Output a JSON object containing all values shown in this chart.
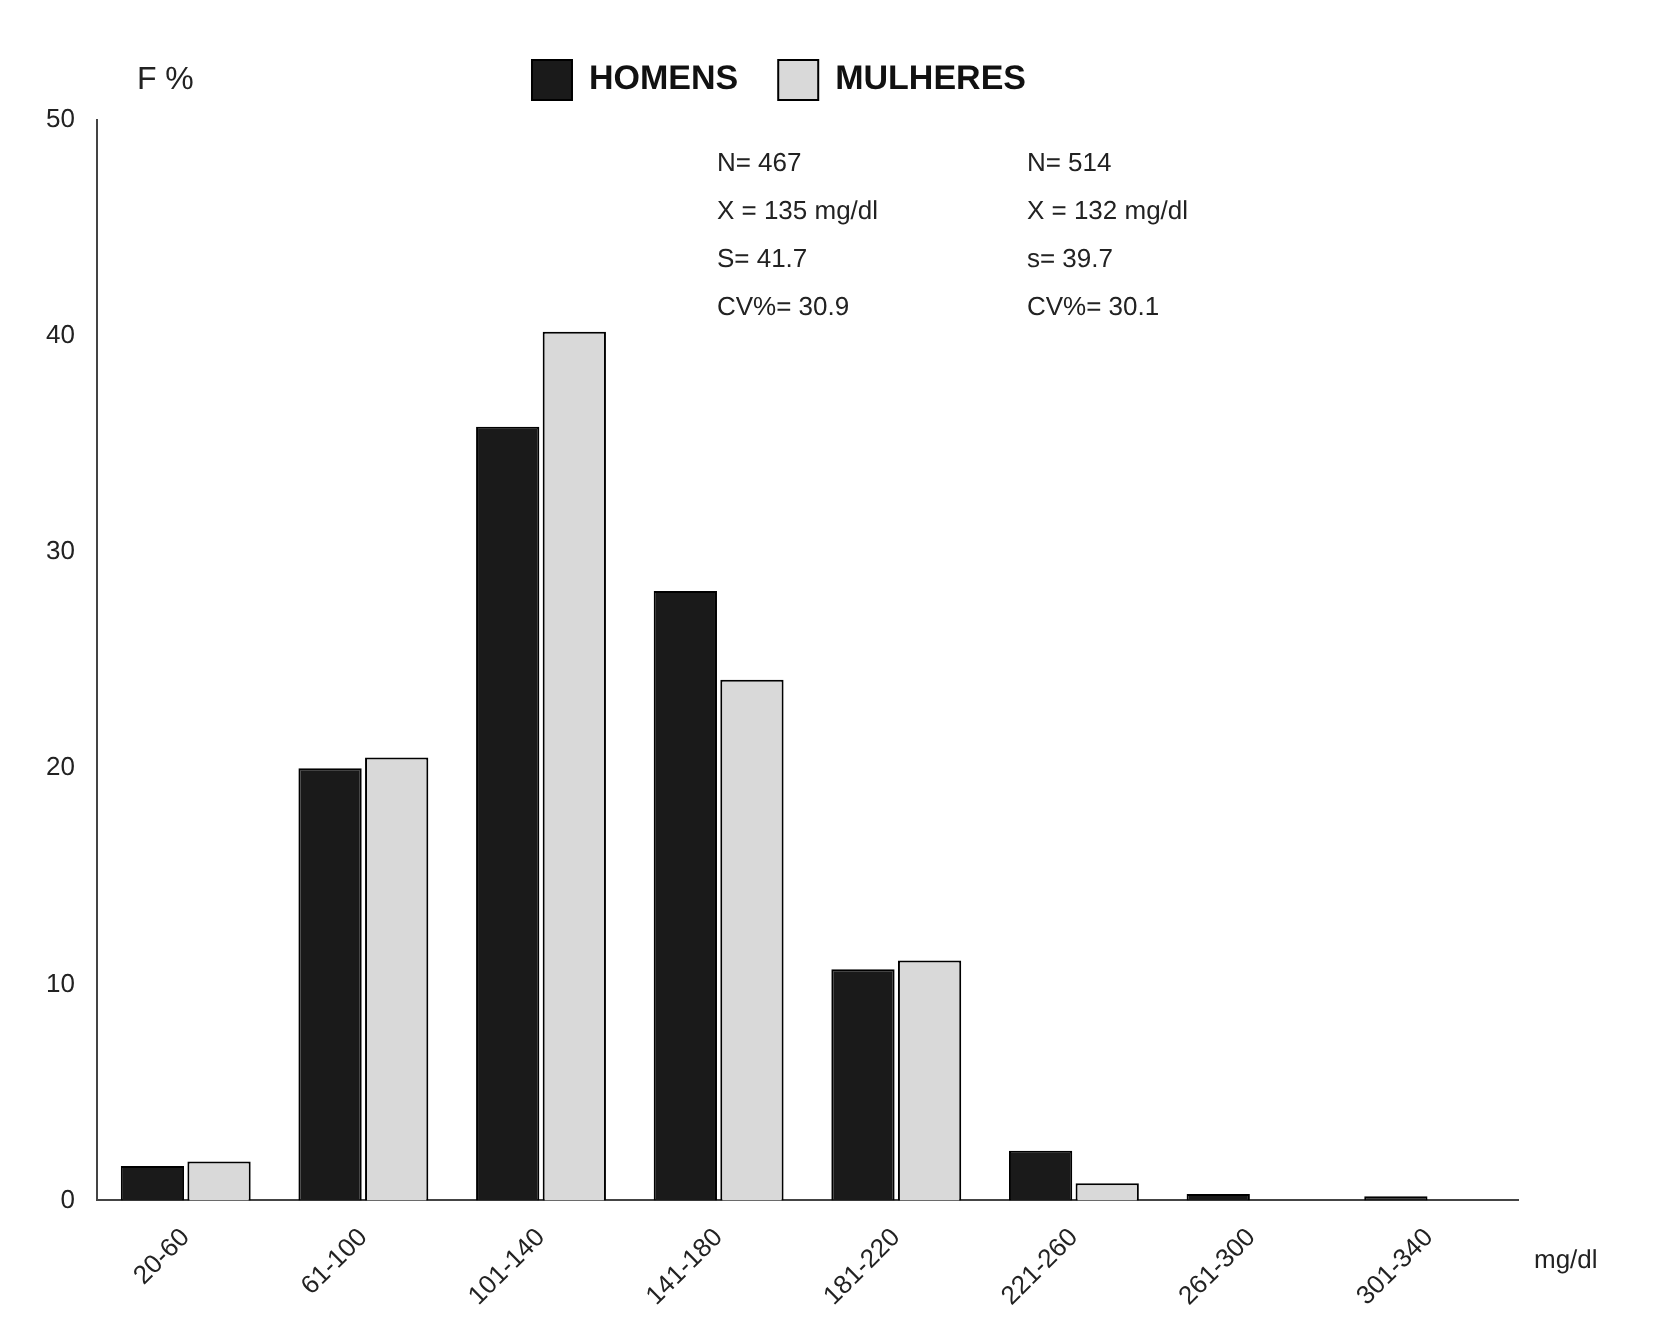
{
  "chart_data": {
    "type": "bar",
    "ylabel": "F %",
    "xlabel": "mg/dl",
    "categories": [
      "20-60",
      "61-100",
      "101-140",
      "141-180",
      "181-220",
      "221-260",
      "261-300",
      "301-340"
    ],
    "series": [
      {
        "name": "HOMENS",
        "color": "#1a1a1a",
        "values": [
          1.6,
          20,
          35.8,
          28.2,
          10.7,
          2.3,
          0.3,
          0.2
        ]
      },
      {
        "name": "MULHERES",
        "color": "#d9d9d9",
        "values": [
          1.8,
          20.5,
          40.2,
          24.1,
          11.1,
          0.8,
          0,
          0
        ]
      }
    ],
    "ylim": [
      0,
      50
    ],
    "yticks": [
      0,
      10,
      20,
      30,
      40,
      50
    ],
    "grid": false,
    "legend": "top",
    "annotations": [
      "N= 467",
      "N= 514",
      "X = 135 mg/dl",
      "X = 132 mg/dl",
      "S= 41.7",
      "s= 39.7",
      "CV%= 30.9",
      "CV%= 30.1"
    ]
  }
}
